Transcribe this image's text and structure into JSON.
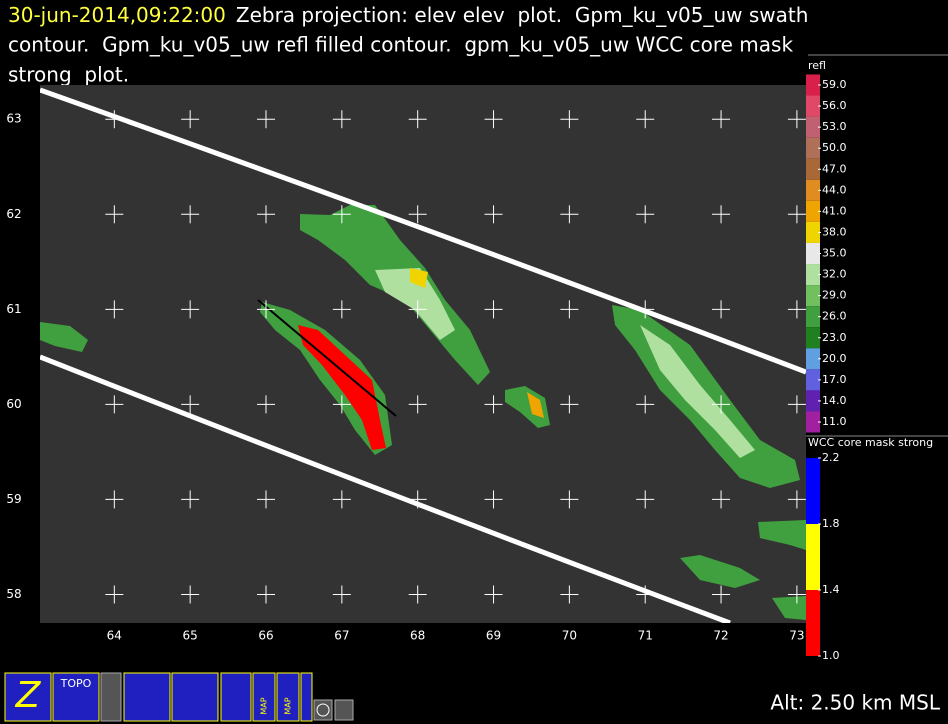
{
  "header": {
    "timestamp": "30-jun-2014,09:22:00",
    "lines": [
      "Zebra projection: elev elev  plot.  Gpm_ku_v05_uw swath",
      "contour.  Gpm_ku_v05_uw refl filled contour.  gpm_ku_v05_uw WCC core mask",
      "strong  plot."
    ]
  },
  "plot": {
    "xlim": [
      63.02,
      73.12
    ],
    "ylim": [
      57.7,
      63.36
    ],
    "xticks": [
      64,
      65,
      66,
      67,
      68,
      69,
      70,
      71,
      72,
      73
    ],
    "yticks": [
      58,
      59,
      60,
      61,
      62,
      63
    ]
  },
  "colorbars": [
    {
      "title": "refl",
      "ticks": [
        {
          "value": 59,
          "label": "59.0"
        },
        {
          "value": 56,
          "label": "56.0"
        },
        {
          "value": 53,
          "label": "53.0"
        },
        {
          "value": 50,
          "label": "50.0"
        },
        {
          "value": 47,
          "label": "47.0"
        },
        {
          "value": 44,
          "label": "44.0"
        },
        {
          "value": 41,
          "label": "41.0"
        },
        {
          "value": 38,
          "label": "38.0"
        },
        {
          "value": 35,
          "label": "35.0"
        },
        {
          "value": 32,
          "label": "32.0"
        },
        {
          "value": 29,
          "label": "29.0"
        },
        {
          "value": 26,
          "label": "26.0"
        },
        {
          "value": 23,
          "label": "23.0"
        },
        {
          "value": 20,
          "label": "20.0"
        },
        {
          "value": 17,
          "label": "17.0"
        },
        {
          "value": 14,
          "label": "14.0"
        },
        {
          "value": 11,
          "label": "11.0"
        }
      ],
      "colors": [
        "#d8204a",
        "#e04868",
        "#c06070",
        "#b07058",
        "#a86838",
        "#e08c20",
        "#f0a400",
        "#f0d400",
        "#e8e8e8",
        "#b0e0a0",
        "#70c060",
        "#40a040",
        "#208020",
        "#60a0e0",
        "#6060e0",
        "#6020b0",
        "#a020a0"
      ]
    },
    {
      "title": "WCC core mask strong",
      "ticks": [
        2.2,
        1.8,
        1.4,
        {
          "value": 1,
          "label": "1.0"
        }
      ],
      "colors": [
        "#0000ff",
        "#ffff00",
        "#ff0000"
      ]
    }
  ],
  "toolbar": {
    "labels": [
      "TOPO",
      "MAP",
      "MAP"
    ]
  },
  "status": "Alt: 2.50 km MSL"
}
